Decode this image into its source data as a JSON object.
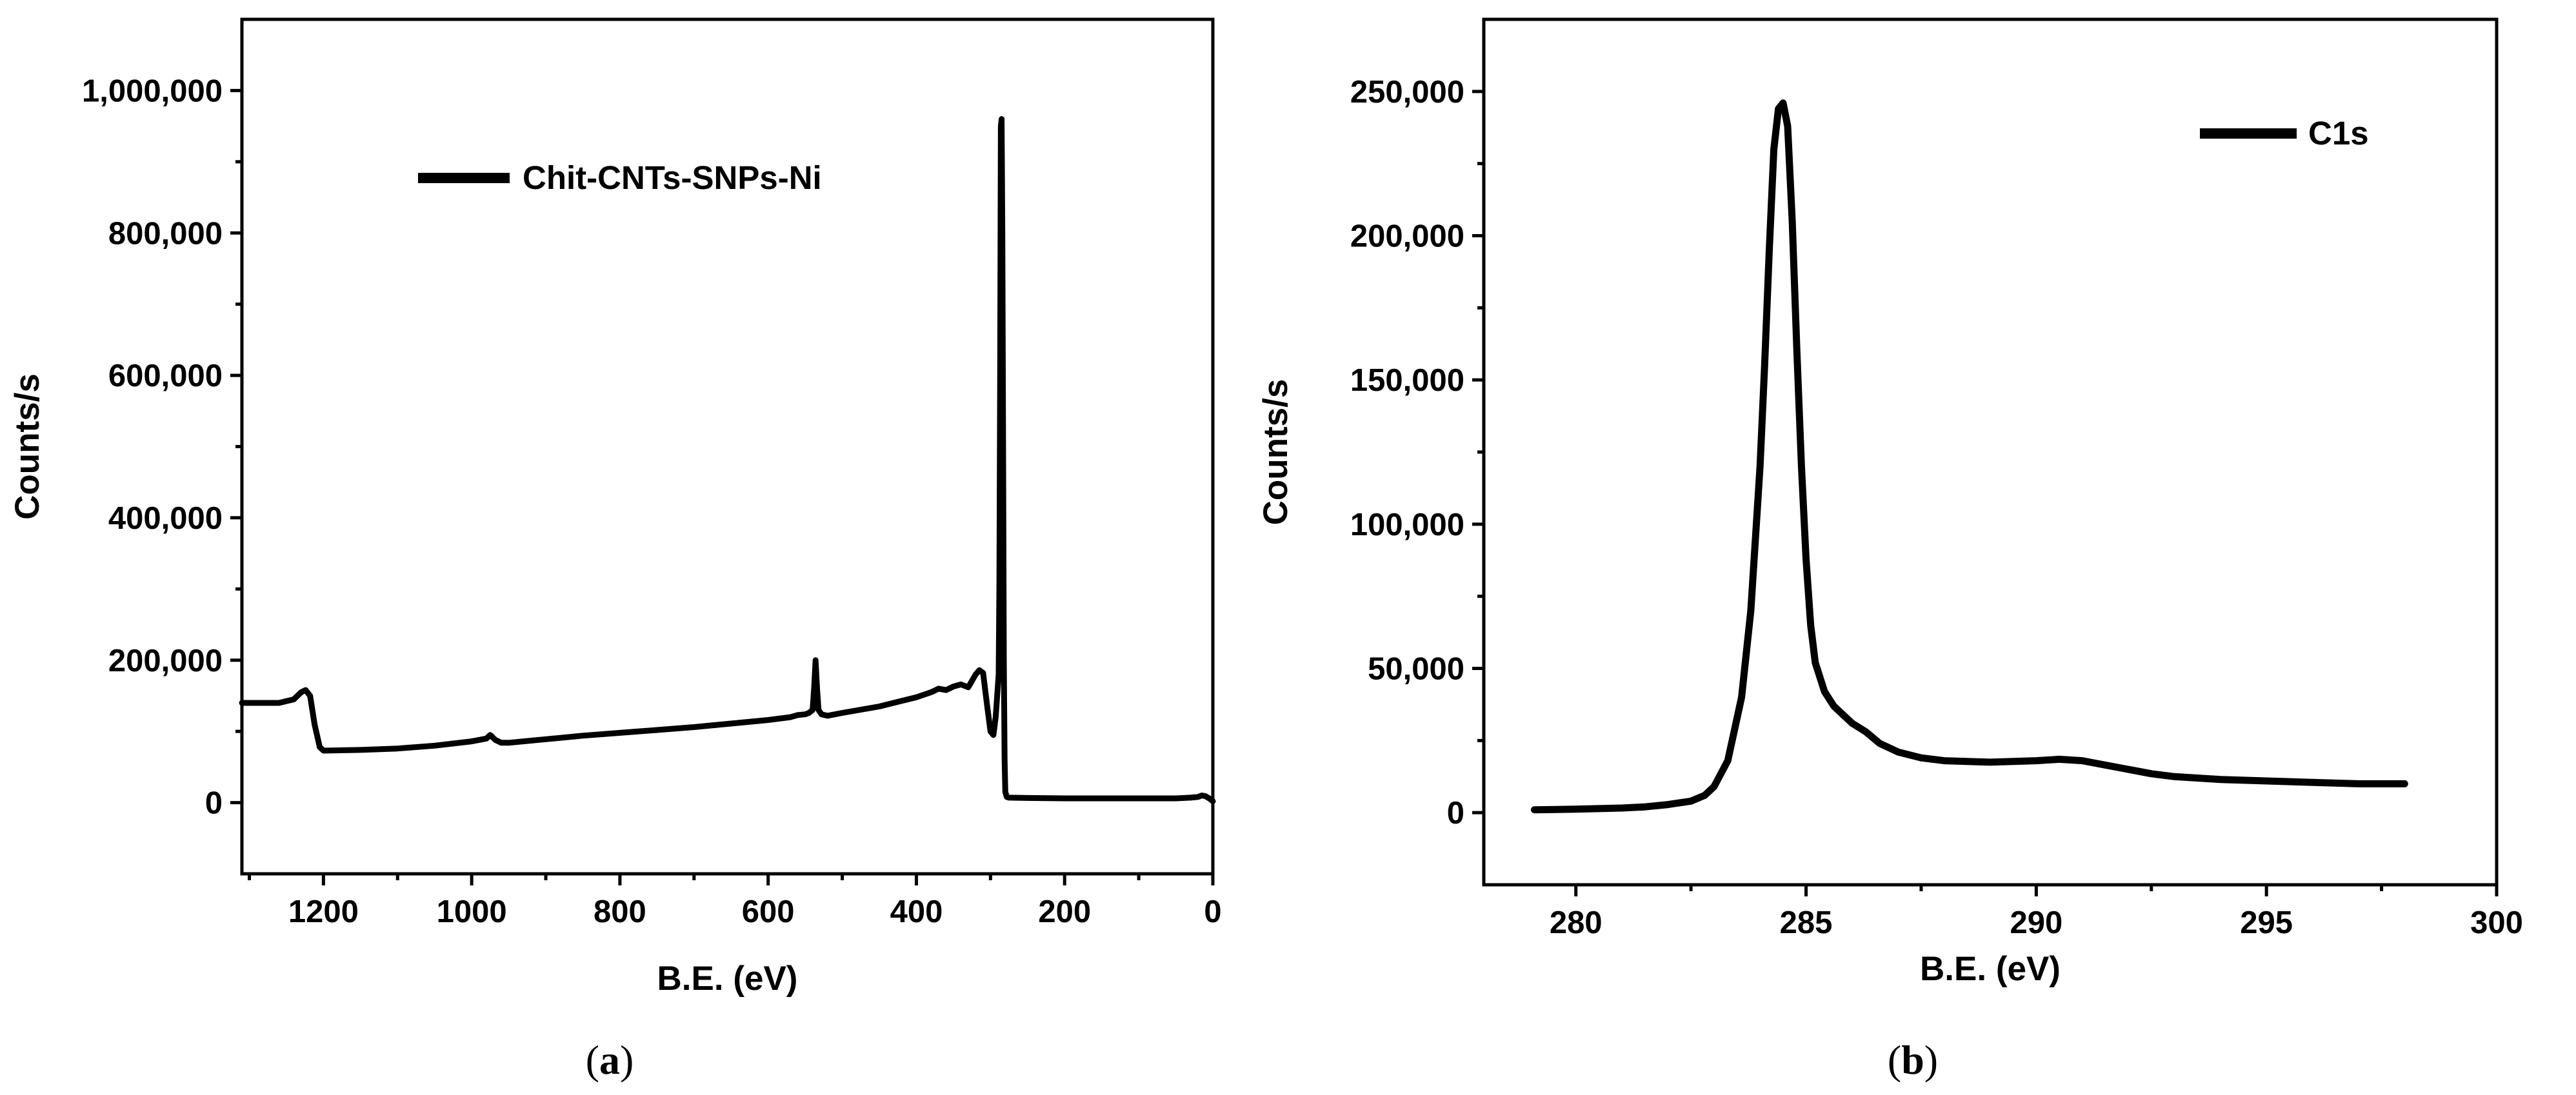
{
  "chart_data": [
    {
      "type": "line",
      "panel_label": "(a)",
      "caption_prefix": "(",
      "caption_letter": "a",
      "caption_suffix": ")",
      "xlabel": "B.E. (eV)",
      "ylabel": "Counts/s",
      "xlim": [
        1310,
        0
      ],
      "ylim": [
        -100000,
        1100000
      ],
      "xticks": [
        1200,
        1000,
        800,
        600,
        400,
        200,
        0
      ],
      "xtick_labels": [
        "1200",
        "1000",
        "800",
        "600",
        "400",
        "200",
        "0"
      ],
      "yticks": [
        0,
        200000,
        400000,
        600000,
        800000,
        1000000
      ],
      "ytick_labels": [
        "0",
        "200,000",
        "400,000",
        "600,000",
        "800,000",
        "1,000,000"
      ],
      "legend": [
        "Chit-CNTs-SNPs-Ni"
      ],
      "legend_position": "top-left",
      "series": [
        {
          "name": "Chit-CNTs-SNPs-Ni",
          "x": [
            1310,
            1260,
            1240,
            1230,
            1224,
            1218,
            1212,
            1205,
            1200,
            1150,
            1100,
            1050,
            1000,
            990,
            980,
            975,
            968,
            960,
            950,
            900,
            850,
            800,
            750,
            700,
            650,
            600,
            570,
            560,
            550,
            545,
            540,
            538,
            536,
            534,
            532,
            528,
            520,
            500,
            450,
            400,
            380,
            370,
            360,
            350,
            340,
            330,
            320,
            315,
            310,
            305,
            300,
            296,
            293,
            291,
            289,
            288,
            287,
            286,
            285,
            284,
            283,
            282,
            281,
            280,
            278,
            275,
            250,
            200,
            150,
            100,
            50,
            30,
            20,
            15,
            10,
            5,
            0
          ],
          "y": [
            140000,
            140000,
            145000,
            155000,
            158000,
            150000,
            110000,
            78000,
            73000,
            74000,
            76000,
            80000,
            86000,
            88000,
            90000,
            95000,
            88000,
            84000,
            84000,
            89000,
            94000,
            98000,
            102000,
            106000,
            111000,
            116000,
            120000,
            123000,
            124000,
            126000,
            130000,
            160000,
            200000,
            160000,
            130000,
            124000,
            122000,
            126000,
            135000,
            148000,
            155000,
            160000,
            158000,
            163000,
            166000,
            162000,
            180000,
            186000,
            182000,
            140000,
            100000,
            95000,
            120000,
            150000,
            180000,
            300000,
            600000,
            950000,
            960000,
            800000,
            500000,
            200000,
            60000,
            15000,
            8000,
            7000,
            6500,
            6000,
            6000,
            6000,
            6000,
            7000,
            8000,
            10000,
            9000,
            6000,
            2000
          ]
        }
      ]
    },
    {
      "type": "line",
      "panel_label": "(b)",
      "caption_prefix": "(",
      "caption_letter": "b",
      "caption_suffix": ")",
      "xlabel": "B.E. (eV)",
      "ylabel": "Counts/s",
      "xlim": [
        278,
        300
      ],
      "ylim": [
        -25000,
        275000
      ],
      "xticks": [
        280,
        285,
        290,
        295,
        300
      ],
      "xtick_labels": [
        "280",
        "285",
        "290",
        "295",
        "300"
      ],
      "yticks": [
        0,
        50000,
        100000,
        150000,
        200000,
        250000
      ],
      "ytick_labels": [
        "0",
        "50,000",
        "100,000",
        "150,000",
        "200,000",
        "250,000"
      ],
      "legend": [
        "C1s"
      ],
      "legend_position": "top-right",
      "series": [
        {
          "name": "C1s",
          "x": [
            279.1,
            280,
            281,
            281.5,
            282,
            282.5,
            282.8,
            283,
            283.3,
            283.6,
            283.8,
            284.0,
            284.1,
            284.2,
            284.3,
            284.4,
            284.5,
            284.6,
            284.7,
            284.8,
            284.9,
            285.0,
            285.1,
            285.2,
            285.4,
            285.6,
            285.8,
            286.0,
            286.3,
            286.6,
            287,
            287.5,
            288,
            289,
            290,
            290.5,
            291,
            291.5,
            292,
            292.5,
            293,
            294,
            295,
            296,
            297,
            298
          ],
          "y": [
            1000,
            1200,
            1600,
            2000,
            2800,
            4000,
            6000,
            9000,
            18000,
            40000,
            70000,
            120000,
            155000,
            195000,
            230000,
            244000,
            246000,
            238000,
            205000,
            160000,
            120000,
            88000,
            65000,
            52000,
            42000,
            37000,
            34000,
            31000,
            28000,
            24000,
            21000,
            19000,
            18000,
            17500,
            18000,
            18500,
            18000,
            16500,
            15000,
            13500,
            12500,
            11500,
            11000,
            10500,
            10000,
            10000
          ]
        }
      ]
    }
  ]
}
